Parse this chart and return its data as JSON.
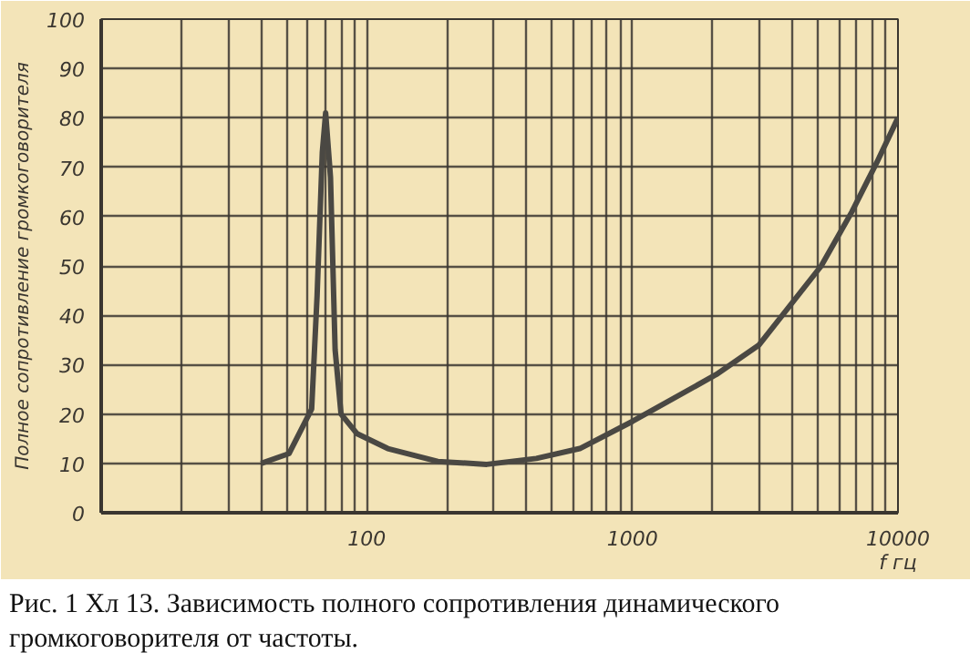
{
  "chart_data": {
    "type": "line",
    "ylabel": "Полное сопротивление громкоговорителя",
    "xlabel": "f гц",
    "annotations": [
      "Рис. 1 Хл 13. Зависимость полного сопротивления динамического громкоговорителя от частоты."
    ],
    "log": "x",
    "grid": true,
    "xlim": [
      10,
      10000
    ],
    "xticks": [
      {
        "value": 20,
        "label": null
      },
      {
        "value": 30,
        "label": null
      },
      {
        "value": 40,
        "label": null
      },
      {
        "value": 50,
        "label": null
      },
      {
        "value": 60,
        "label": null
      },
      {
        "value": 70,
        "label": null
      },
      {
        "value": 80,
        "label": null
      },
      {
        "value": 90,
        "label": null
      },
      100,
      {
        "value": 200,
        "label": null
      },
      {
        "value": 300,
        "label": null
      },
      {
        "value": 400,
        "label": null
      },
      {
        "value": 500,
        "label": null
      },
      {
        "value": 600,
        "label": null
      },
      {
        "value": 700,
        "label": null
      },
      {
        "value": 800,
        "label": null
      },
      {
        "value": 900,
        "label": null
      },
      1000,
      {
        "value": 2000,
        "label": null
      },
      {
        "value": 3000,
        "label": null
      },
      {
        "value": 4000,
        "label": null
      },
      {
        "value": 5000,
        "label": null
      },
      {
        "value": 6000,
        "label": null
      },
      {
        "value": 7000,
        "label": null
      },
      {
        "value": 8000,
        "label": null
      },
      {
        "value": 9000,
        "label": null
      },
      10000
    ],
    "ylim": [
      0,
      100
    ],
    "yticks": [
      0,
      10,
      20,
      30,
      40,
      50,
      60,
      70,
      80,
      90,
      100
    ],
    "series": [
      {
        "color": "#4a4843",
        "x": [
          40,
          51,
          62,
          65,
          68,
          70,
          73,
          76,
          80,
          92,
          120,
          185,
          283,
          435,
          634,
          1000,
          2070,
          3000,
          5140,
          6710,
          8330,
          10000
        ],
        "values": [
          10,
          12,
          21,
          44,
          73,
          81,
          68,
          33,
          20,
          16,
          13,
          10.4,
          9.8,
          11,
          13,
          18.5,
          28,
          34,
          50,
          61,
          71,
          80
        ]
      }
    ]
  }
}
